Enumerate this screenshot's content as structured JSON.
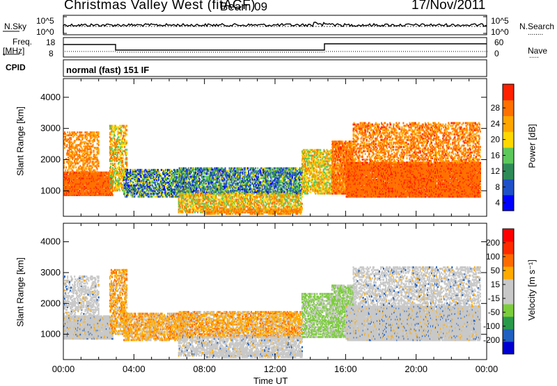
{
  "header": {
    "title": "Christmas Valley West (fitACF)",
    "beam": "Beam 09",
    "date": "17/Nov/2011"
  },
  "status_panels": {
    "nsky_label": "N.Sky",
    "nsearch_label": "N.Search",
    "freq_label": "Freq.",
    "freq_unit": "[MHz]",
    "nave_label": "Nave",
    "cpid_label": "CPID",
    "cpid_value": "normal (fast) 151 IF",
    "noise_ticks": [
      "10^5",
      "10^0"
    ],
    "freq_ticks": [
      "18",
      "8"
    ],
    "nave_ticks": [
      "60",
      "0"
    ]
  },
  "colors": {
    "power": [
      "#0000ff",
      "#2050c8",
      "#2e8b57",
      "#5cc85c",
      "#ffd700",
      "#ffa500",
      "#ff7000",
      "#ff2000"
    ],
    "velocity": [
      "#0000d0",
      "#2060c0",
      "#2a9a4a",
      "#7ccd3c",
      "#c8c8c8",
      "#c8c8c8",
      "#ffaa00",
      "#ff6a00",
      "#ff2a00",
      "#ff0000"
    ]
  },
  "chart_data": [
    {
      "type": "heatmap",
      "title": "Power",
      "xlabel": "Time UT",
      "ylabel": "Slant Range [km]",
      "x_ticks": [
        "00:00",
        "04:00",
        "08:00",
        "12:00",
        "16:00",
        "20:00",
        "00:00"
      ],
      "xlim_hours": [
        0,
        24
      ],
      "ylim": [
        180,
        4600
      ],
      "y_ticks": [
        1000,
        2000,
        3000,
        4000
      ],
      "colorbar": {
        "label": "Power [dB]",
        "ticks": [
          4,
          8,
          12,
          16,
          20,
          24,
          28
        ]
      }
    },
    {
      "type": "heatmap",
      "title": "Velocity",
      "xlabel": "Time UT",
      "ylabel": "Slant Range [km]",
      "x_ticks": [
        "00:00",
        "04:00",
        "08:00",
        "12:00",
        "16:00",
        "20:00",
        "00:00"
      ],
      "xlim_hours": [
        0,
        24
      ],
      "ylim": [
        180,
        4600
      ],
      "y_ticks": [
        1000,
        2000,
        3000,
        4000
      ],
      "colorbar": {
        "label": "Velocity [m s⁻¹]",
        "ticks": [
          200,
          100,
          50,
          15,
          -15,
          -50,
          -100,
          -200
        ]
      }
    }
  ]
}
